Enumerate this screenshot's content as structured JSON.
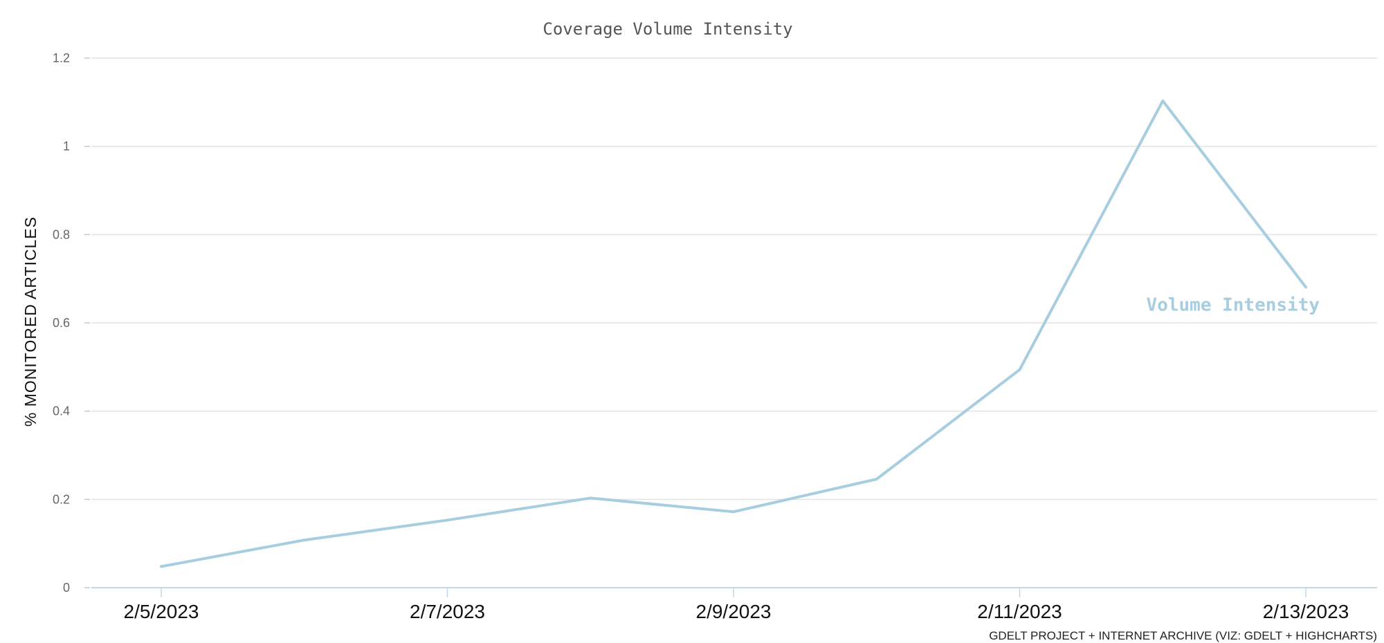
{
  "chart_data": {
    "type": "line",
    "title": "Coverage Volume Intensity",
    "xlabel": "",
    "ylabel": "% MONITORED ARTICLES",
    "ylim": [
      0,
      1.2
    ],
    "yticks": [
      "0",
      "0.2",
      "0.4",
      "0.6",
      "0.8",
      "1",
      "1.2"
    ],
    "xticks": [
      "2/5/2023",
      "2/7/2023",
      "2/9/2023",
      "2/11/2023",
      "2/13/2023"
    ],
    "x": [
      "2/5/2023",
      "2/6/2023",
      "2/7/2023",
      "2/8/2023",
      "2/9/2023",
      "2/10/2023",
      "2/11/2023",
      "2/12/2023",
      "2/13/2023"
    ],
    "series": [
      {
        "name": "Volume Intensity",
        "color": "#a6cde0",
        "values": [
          0.048,
          0.108,
          0.153,
          0.203,
          0.172,
          0.246,
          0.494,
          1.103,
          0.681
        ]
      }
    ],
    "grid": true,
    "legend": "inline label near end of series",
    "credits": "GDELT PROJECT + INTERNET ARCHIVE (VIZ: GDELT + HIGHCHARTS)"
  }
}
